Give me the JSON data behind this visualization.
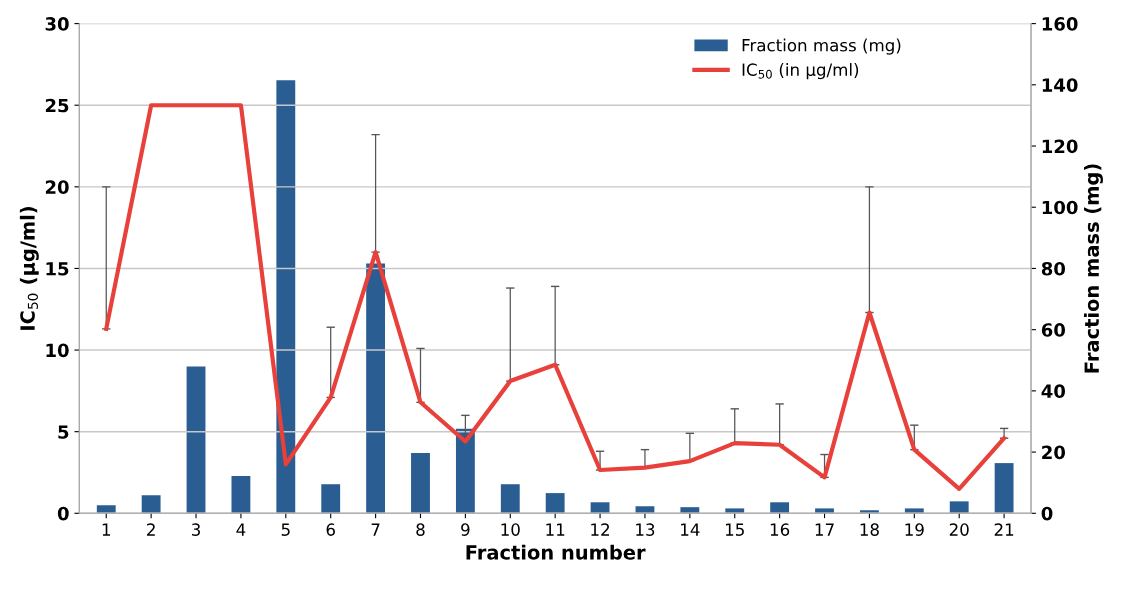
{
  "chart_data": {
    "type": "bar",
    "xlabel": "Fraction number",
    "ylabel": "IC$_{50}$ (µg/ml)",
    "y2label": "Fraction mass (mg)",
    "categories": [
      "1",
      "2",
      "3",
      "4",
      "5",
      "6",
      "7",
      "8",
      "9",
      "10",
      "11",
      "12",
      "13",
      "14",
      "15",
      "16",
      "17",
      "18",
      "19",
      "20",
      "21"
    ],
    "series": [
      {
        "name": "Fraction mass (mg)",
        "axis": "y2",
        "color": "#2a5d91",
        "values": [
          2.6,
          5.9,
          48,
          12.2,
          141.5,
          9.5,
          81.6,
          19.7,
          27.6,
          9.5,
          6.6,
          3.6,
          2.3,
          2.0,
          1.6,
          3.6,
          1.6,
          1.0,
          1.6,
          3.9,
          16.4
        ]
      },
      {
        "name": "IC$_{50}$ (in µg/ml)",
        "type": "line",
        "axis": "y",
        "color": "#e8403a",
        "values": [
          11.3,
          25,
          25,
          25,
          3.0,
          7.1,
          16.0,
          6.8,
          4.4,
          8.1,
          9.1,
          2.65,
          2.8,
          3.2,
          4.3,
          4.2,
          2.2,
          12.3,
          3.9,
          1.5,
          4.6
        ],
        "errors": [
          [
            11.3,
            20
          ],
          null,
          null,
          null,
          null,
          [
            7.1,
            11.4
          ],
          [
            16.0,
            23.2
          ],
          [
            6.8,
            10.1
          ],
          [
            4.4,
            6.0
          ],
          [
            8.1,
            13.8
          ],
          [
            9.1,
            13.9
          ],
          [
            2.65,
            3.8
          ],
          [
            2.8,
            3.9
          ],
          [
            3.2,
            4.9
          ],
          [
            4.3,
            6.4
          ],
          [
            4.2,
            6.7
          ],
          [
            2.2,
            3.6
          ],
          [
            12.3,
            20
          ],
          [
            3.9,
            5.4
          ],
          null,
          [
            4.6,
            5.2
          ]
        ]
      }
    ],
    "ylim": [
      0,
      30
    ],
    "yticks": [
      0,
      5,
      10,
      15,
      20,
      25,
      30
    ],
    "y2lim": [
      0,
      160
    ],
    "y2ticks": [
      0,
      20,
      40,
      60,
      80,
      100,
      120,
      140,
      160
    ],
    "grid": "y",
    "legend": "top right"
  }
}
